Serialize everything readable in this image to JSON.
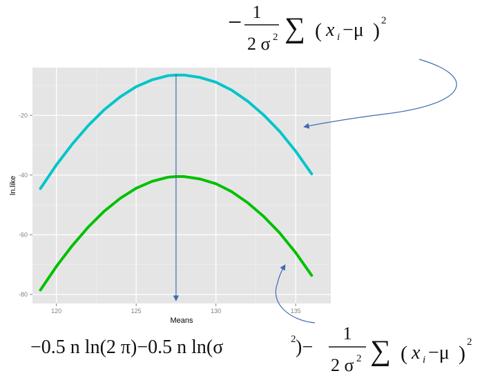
{
  "chart_data": {
    "type": "line",
    "title": "",
    "xlabel": "Means",
    "ylabel": "ln.like",
    "xlim": [
      118.5,
      137.2
    ],
    "ylim": [
      -83,
      -4
    ],
    "x_ticks": [
      120,
      125,
      130,
      135
    ],
    "y_ticks": [
      -20,
      -40,
      -60,
      -80
    ],
    "x_tick_labels": [
      "120",
      "125",
      "130",
      "135"
    ],
    "y_tick_labels": [
      "-20",
      "-40",
      "-60",
      "-80"
    ],
    "grid": true,
    "legend": "none",
    "series": [
      {
        "color": "#00c5c9",
        "x": [
          119,
          120,
          121,
          122,
          123,
          124,
          125,
          126,
          127,
          127.5,
          128,
          129,
          130,
          131,
          132,
          133,
          134,
          135,
          136
        ],
        "y": [
          -44.5,
          -36.6,
          -29.6,
          -23.4,
          -18.1,
          -13.8,
          -10.4,
          -8.1,
          -6.7,
          -6.5,
          -6.5,
          -7.3,
          -8.9,
          -11.6,
          -15.3,
          -19.9,
          -25.4,
          -32.0,
          -39.6
        ]
      },
      {
        "color": "#00c000",
        "x": [
          119,
          120,
          121,
          122,
          123,
          124,
          125,
          126,
          127,
          127.5,
          128,
          129,
          130,
          131,
          132,
          133,
          134,
          135,
          136
        ],
        "y": [
          -78.5,
          -70.6,
          -63.6,
          -57.4,
          -52.1,
          -47.8,
          -44.4,
          -42.1,
          -40.7,
          -40.5,
          -40.5,
          -41.3,
          -42.9,
          -45.6,
          -49.3,
          -53.9,
          -59.4,
          -66.0,
          -73.6
        ]
      }
    ],
    "annotations": {
      "vertical_line_x": 127.5,
      "vertical_line_color": "#3d6bb3",
      "arrow_color": "#3d6bb3"
    }
  },
  "formulas": {
    "top": {
      "minus": "−",
      "frac_num": "1",
      "frac_den": "2 σ",
      "frac_den_sup": "2",
      "sum": "∑",
      "open": "(",
      "x": "x",
      "sub_i": "i",
      "minus_mu": "−μ",
      "close": ")",
      "sup2": "2"
    },
    "bottom": {
      "lead": "−0.5 n ln(2 π)−0.5 n ln(σ",
      "lead_sup": "2",
      "close_paren_minus": ")−",
      "frac_num": "1",
      "frac_den": "2 σ",
      "frac_den_sup": "2",
      "sum": "∑",
      "open": "(",
      "x": "x",
      "sub_i": "i",
      "minus_mu": "−μ",
      "close": ")",
      "sup2": "2"
    }
  }
}
